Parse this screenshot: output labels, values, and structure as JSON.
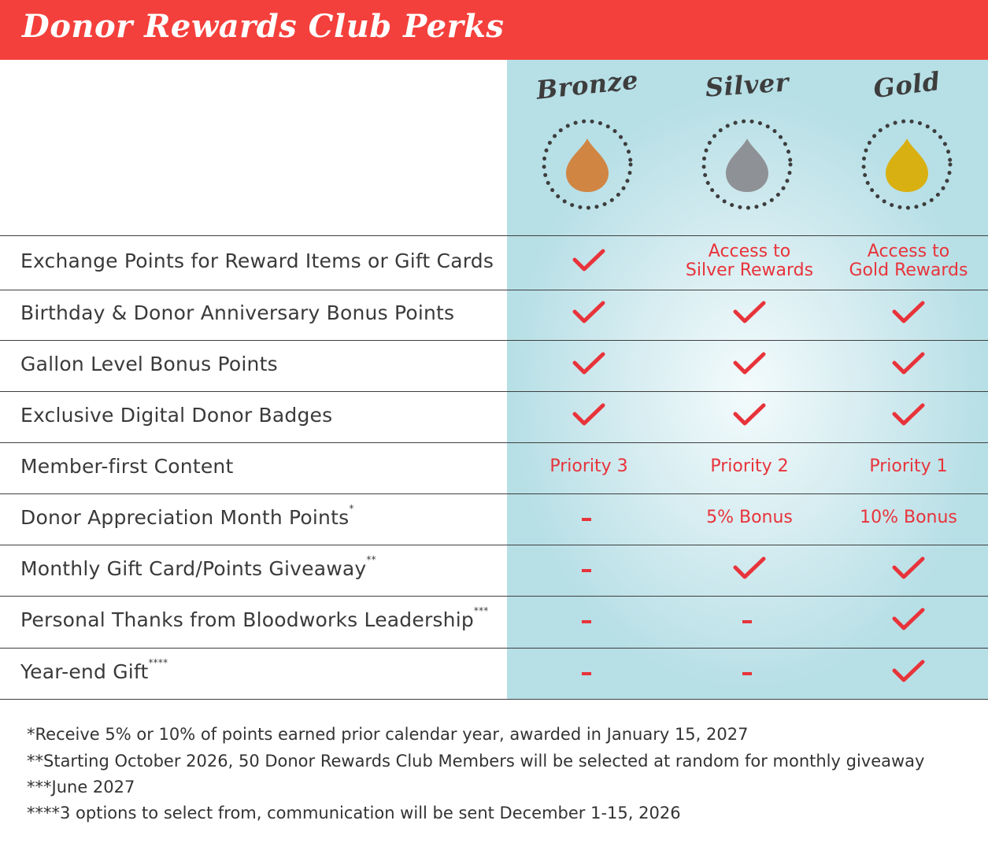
{
  "header": {
    "title": "Donor Rewards Club Perks",
    "color": "#f4403c"
  },
  "tiers": [
    {
      "name": "Bronze",
      "drop_color": "#d08543",
      "icon": "bronze-drop-icon"
    },
    {
      "name": "Silver",
      "drop_color": "#8e9195",
      "icon": "silver-drop-icon"
    },
    {
      "name": "Gold",
      "drop_color": "#d9b012",
      "icon": "gold-drop-icon"
    }
  ],
  "rows": [
    {
      "label": "Exchange Points for Reward Items or Gift Cards",
      "note": "",
      "cells": [
        {
          "type": "check"
        },
        {
          "type": "text",
          "line1": "Access to",
          "line2": "Silver Rewards"
        },
        {
          "type": "text",
          "line1": "Access to",
          "line2": "Gold Rewards"
        }
      ]
    },
    {
      "label": "Birthday & Donor Anniversary Bonus Points",
      "note": "",
      "cells": [
        {
          "type": "check"
        },
        {
          "type": "check"
        },
        {
          "type": "check"
        }
      ]
    },
    {
      "label": "Gallon Level Bonus Points",
      "note": "",
      "cells": [
        {
          "type": "check"
        },
        {
          "type": "check"
        },
        {
          "type": "check"
        }
      ]
    },
    {
      "label": "Exclusive Digital Donor Badges",
      "note": "",
      "cells": [
        {
          "type": "check"
        },
        {
          "type": "check"
        },
        {
          "type": "check"
        }
      ]
    },
    {
      "label": "Member-first Content",
      "note": "",
      "cells": [
        {
          "type": "text",
          "line1": "Priority 3"
        },
        {
          "type": "text",
          "line1": "Priority 2"
        },
        {
          "type": "text",
          "line1": "Priority 1"
        }
      ]
    },
    {
      "label": "Donor Appreciation Month Points",
      "note": "*",
      "cells": [
        {
          "type": "dash"
        },
        {
          "type": "text",
          "line1": "5% Bonus"
        },
        {
          "type": "text",
          "line1": "10% Bonus"
        }
      ]
    },
    {
      "label": "Monthly Gift Card/Points Giveaway",
      "note": "**",
      "cells": [
        {
          "type": "dash"
        },
        {
          "type": "check"
        },
        {
          "type": "check"
        }
      ]
    },
    {
      "label": "Personal Thanks from Bloodworks Leadership",
      "note": "***",
      "cells": [
        {
          "type": "dash"
        },
        {
          "type": "dash"
        },
        {
          "type": "check"
        }
      ]
    },
    {
      "label": "Year-end Gift",
      "note": "****",
      "cells": [
        {
          "type": "dash"
        },
        {
          "type": "dash"
        },
        {
          "type": "check"
        }
      ]
    }
  ],
  "footnotes": [
    "*Receive 5% or 10% of points earned prior calendar year, awarded in January 15, 2027",
    "**Starting October 2026, 50 Donor Rewards Club Members will be selected at random for monthly giveaway",
    "***June 2027",
    "****3 options to select from, communication will be sent December 1-15, 2026"
  ],
  "colors": {
    "accent": "#e8333a",
    "panel": "#b7dfe6",
    "text": "#3a3a3a"
  }
}
